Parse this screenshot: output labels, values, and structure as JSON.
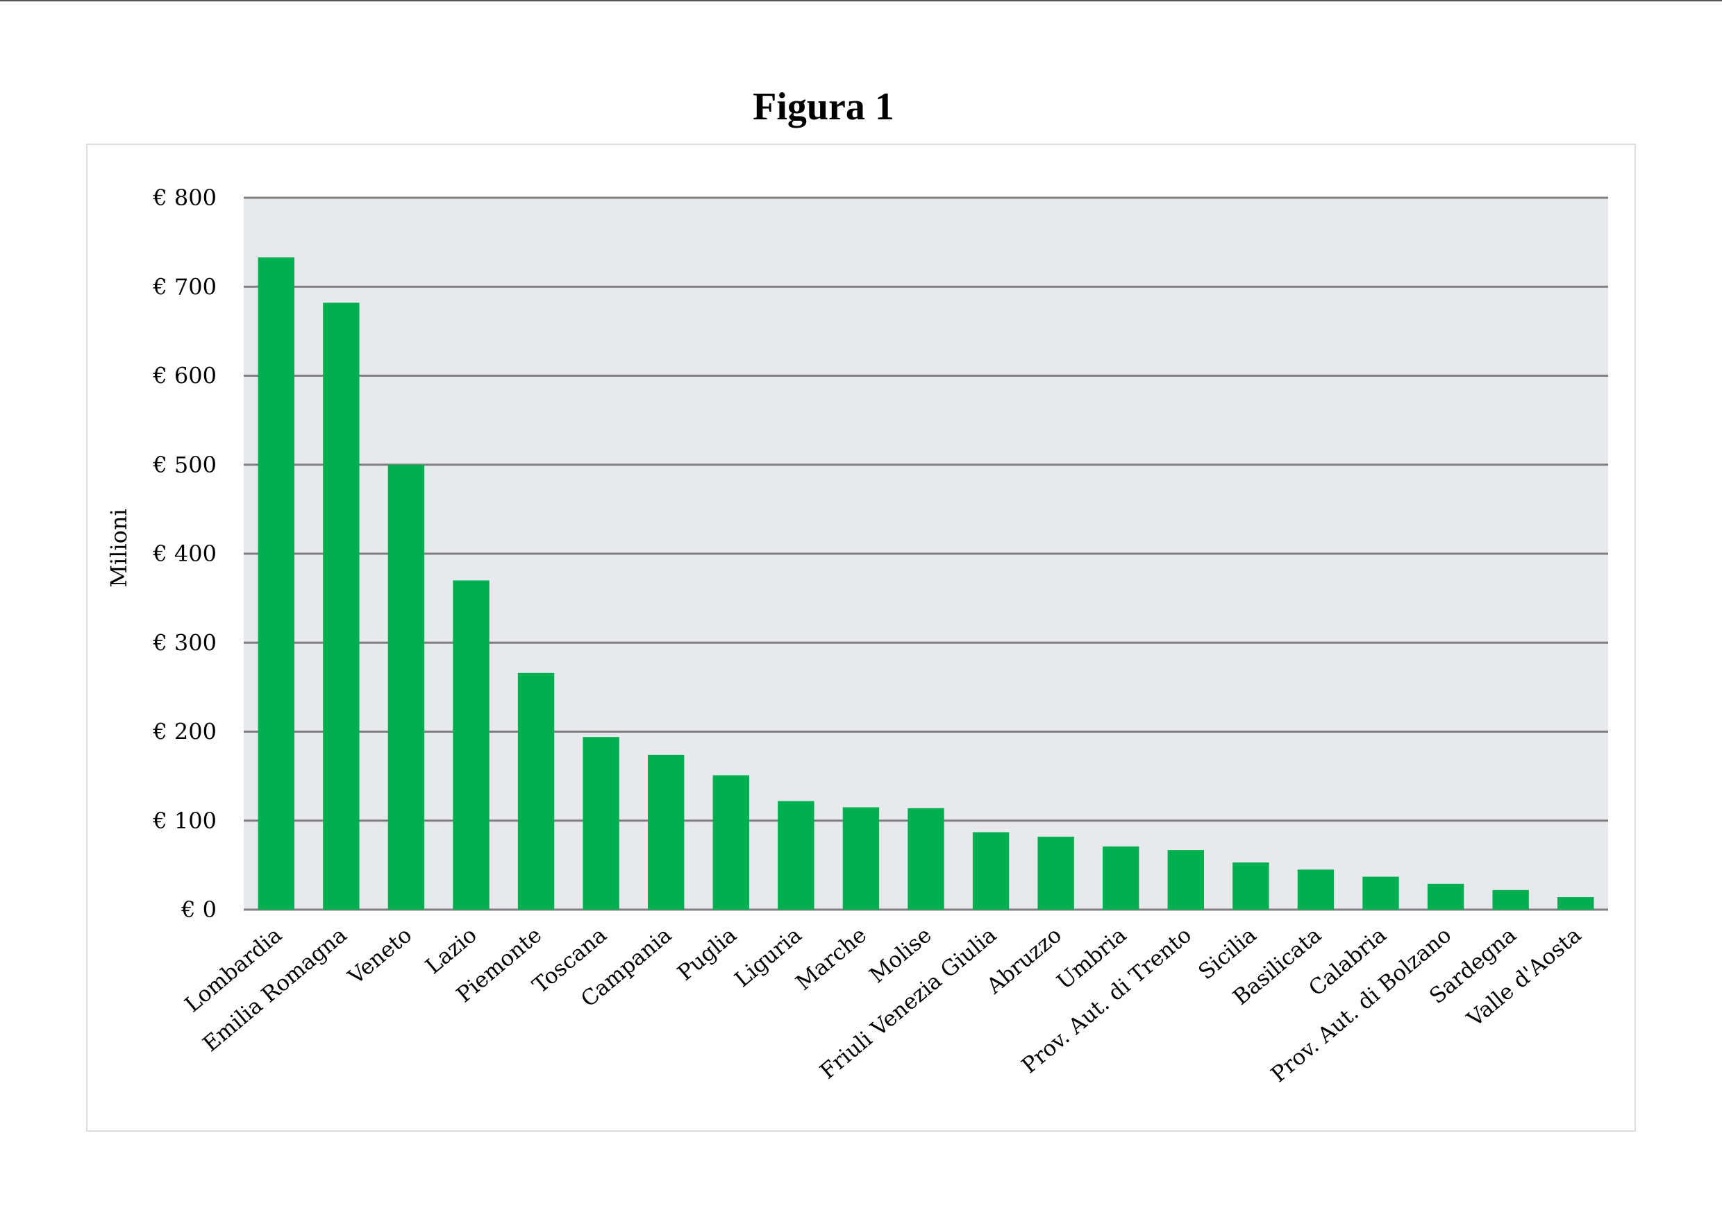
{
  "page": {
    "title": "Figura 1"
  },
  "chart_data": {
    "type": "bar",
    "title": "",
    "xlabel": "",
    "ylabel": "Milioni",
    "ylim": [
      0,
      800
    ],
    "yticks": [
      0,
      100,
      200,
      300,
      400,
      500,
      600,
      700,
      800
    ],
    "ytick_labels": [
      "€ 0",
      "€ 100",
      "€ 200",
      "€ 300",
      "€ 400",
      "€ 500",
      "€ 600",
      "€ 700",
      "€ 800"
    ],
    "grid": true,
    "legend": "none",
    "categories": [
      "Lombardia",
      "Emilia Romagna",
      "Veneto",
      "Lazio",
      "Piemonte",
      "Toscana",
      "Campania",
      "Puglia",
      "Liguria",
      "Marche",
      "Molise",
      "Friuli Venezia Giulia",
      "Abruzzo",
      "Umbria",
      "Prov. Aut. di Trento",
      "Sicilia",
      "Basilicata",
      "Calabria",
      "Prov. Aut. di Bolzano",
      "Sardegna",
      "Valle d'Aosta"
    ],
    "values": [
      733,
      682,
      500,
      370,
      266,
      194,
      174,
      151,
      122,
      115,
      114,
      87,
      82,
      71,
      67,
      53,
      45,
      37,
      29,
      22,
      14
    ],
    "colors": {
      "bar": "#00b050",
      "plot_background": "#e8e9ed",
      "grid": "#7f7f7f"
    }
  }
}
